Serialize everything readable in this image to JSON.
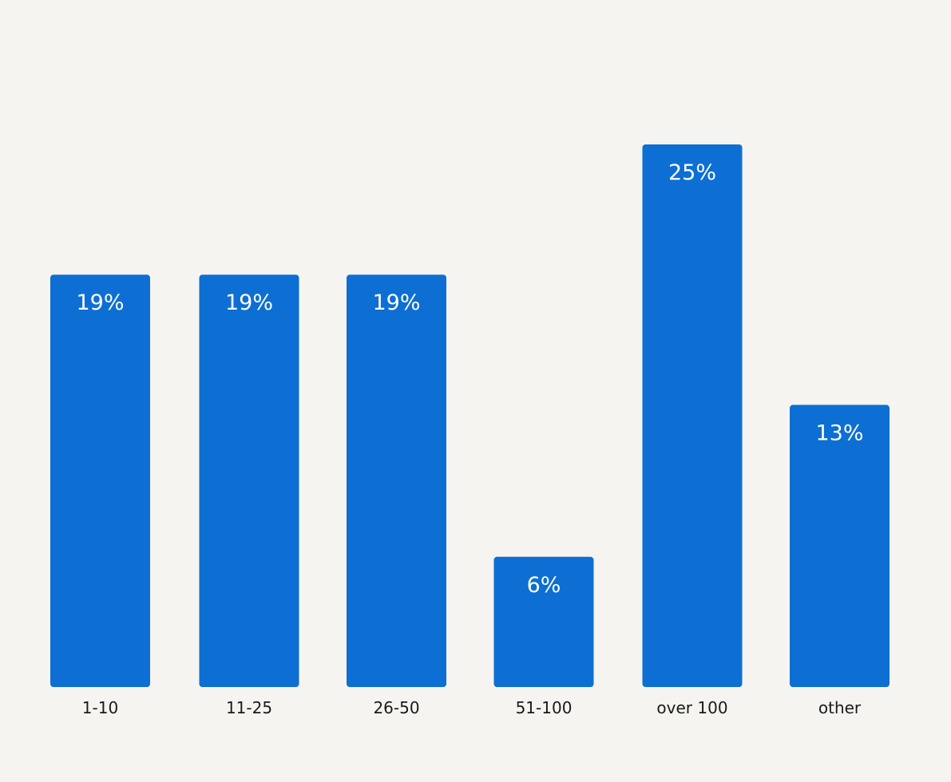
{
  "chart_data": {
    "type": "bar",
    "categories": [
      "1-10",
      "11-25",
      "26-50",
      "51-100",
      "over 100",
      "other"
    ],
    "values": [
      19,
      19,
      19,
      6,
      25,
      13
    ],
    "value_labels": [
      "19%",
      "19%",
      "19%",
      "6%",
      "25%",
      "13%"
    ],
    "unit": "%",
    "title": "",
    "xlabel": "",
    "ylabel": "",
    "ylim": [
      0,
      25
    ],
    "grid": false,
    "legend": "none",
    "bar_color": "#0d6fd3"
  }
}
